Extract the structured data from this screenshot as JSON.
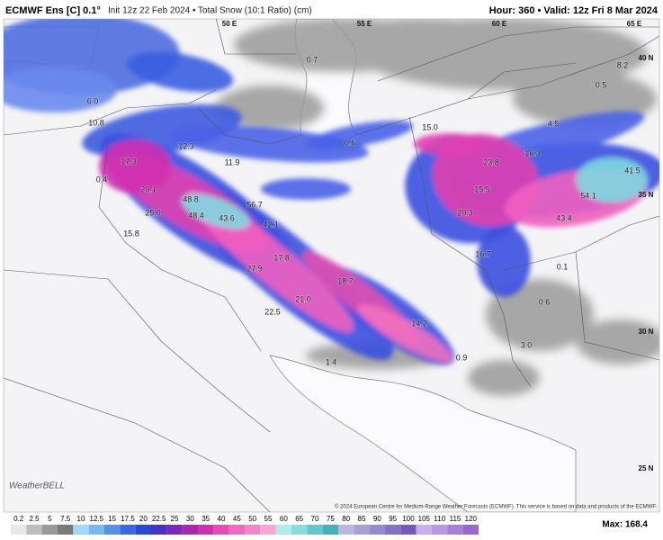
{
  "header": {
    "model": "ECMWF Ens [C] 0.1°",
    "run": "Init 12z 22 Feb 2024 • Total Snow (10:1 Ratio) (cm)",
    "valid": "Hour: 360 • Valid: 12z Fri 8 Mar 2024"
  },
  "grid_labels": [
    "50 E",
    "55 E",
    "60 E",
    "65 E",
    "40 N",
    "35 N",
    "30 N",
    "25 N"
  ],
  "map_labels": [
    "6.0",
    "10.8",
    "12.3",
    "11.9",
    "17.3",
    "0.4",
    "20.1",
    "48.8",
    "25.0",
    "48.4",
    "43.6",
    "56.7",
    "42.1",
    "15.8",
    "17.8",
    "27.9",
    "18.7",
    "21.0",
    "22.5",
    "14.2",
    "0.9",
    "1.4",
    "0.6",
    "15.0",
    "16.3",
    "23.8",
    "15.5",
    "20.3",
    "54.1",
    "43.4",
    "41.5",
    "16.7",
    "0.1",
    "0.6",
    "3.0",
    "4.5",
    "0.5",
    "8.2",
    "0.7"
  ],
  "credit": "© 2024 European Centre for Medium-Range Weather Forecasts (ECMWF). This service is based on data and products of the ECMWF.",
  "logo": "WeatherBELL",
  "colorbar": {
    "ticks": [
      0.2,
      2.5,
      5,
      7.5,
      10,
      12.5,
      15,
      17.5,
      20,
      22.5,
      25,
      30,
      35,
      40,
      45,
      50,
      55,
      60,
      65,
      70,
      75,
      80,
      85,
      90,
      95,
      100,
      105,
      110,
      115,
      120
    ],
    "max": "Max: 168.4"
  }
}
